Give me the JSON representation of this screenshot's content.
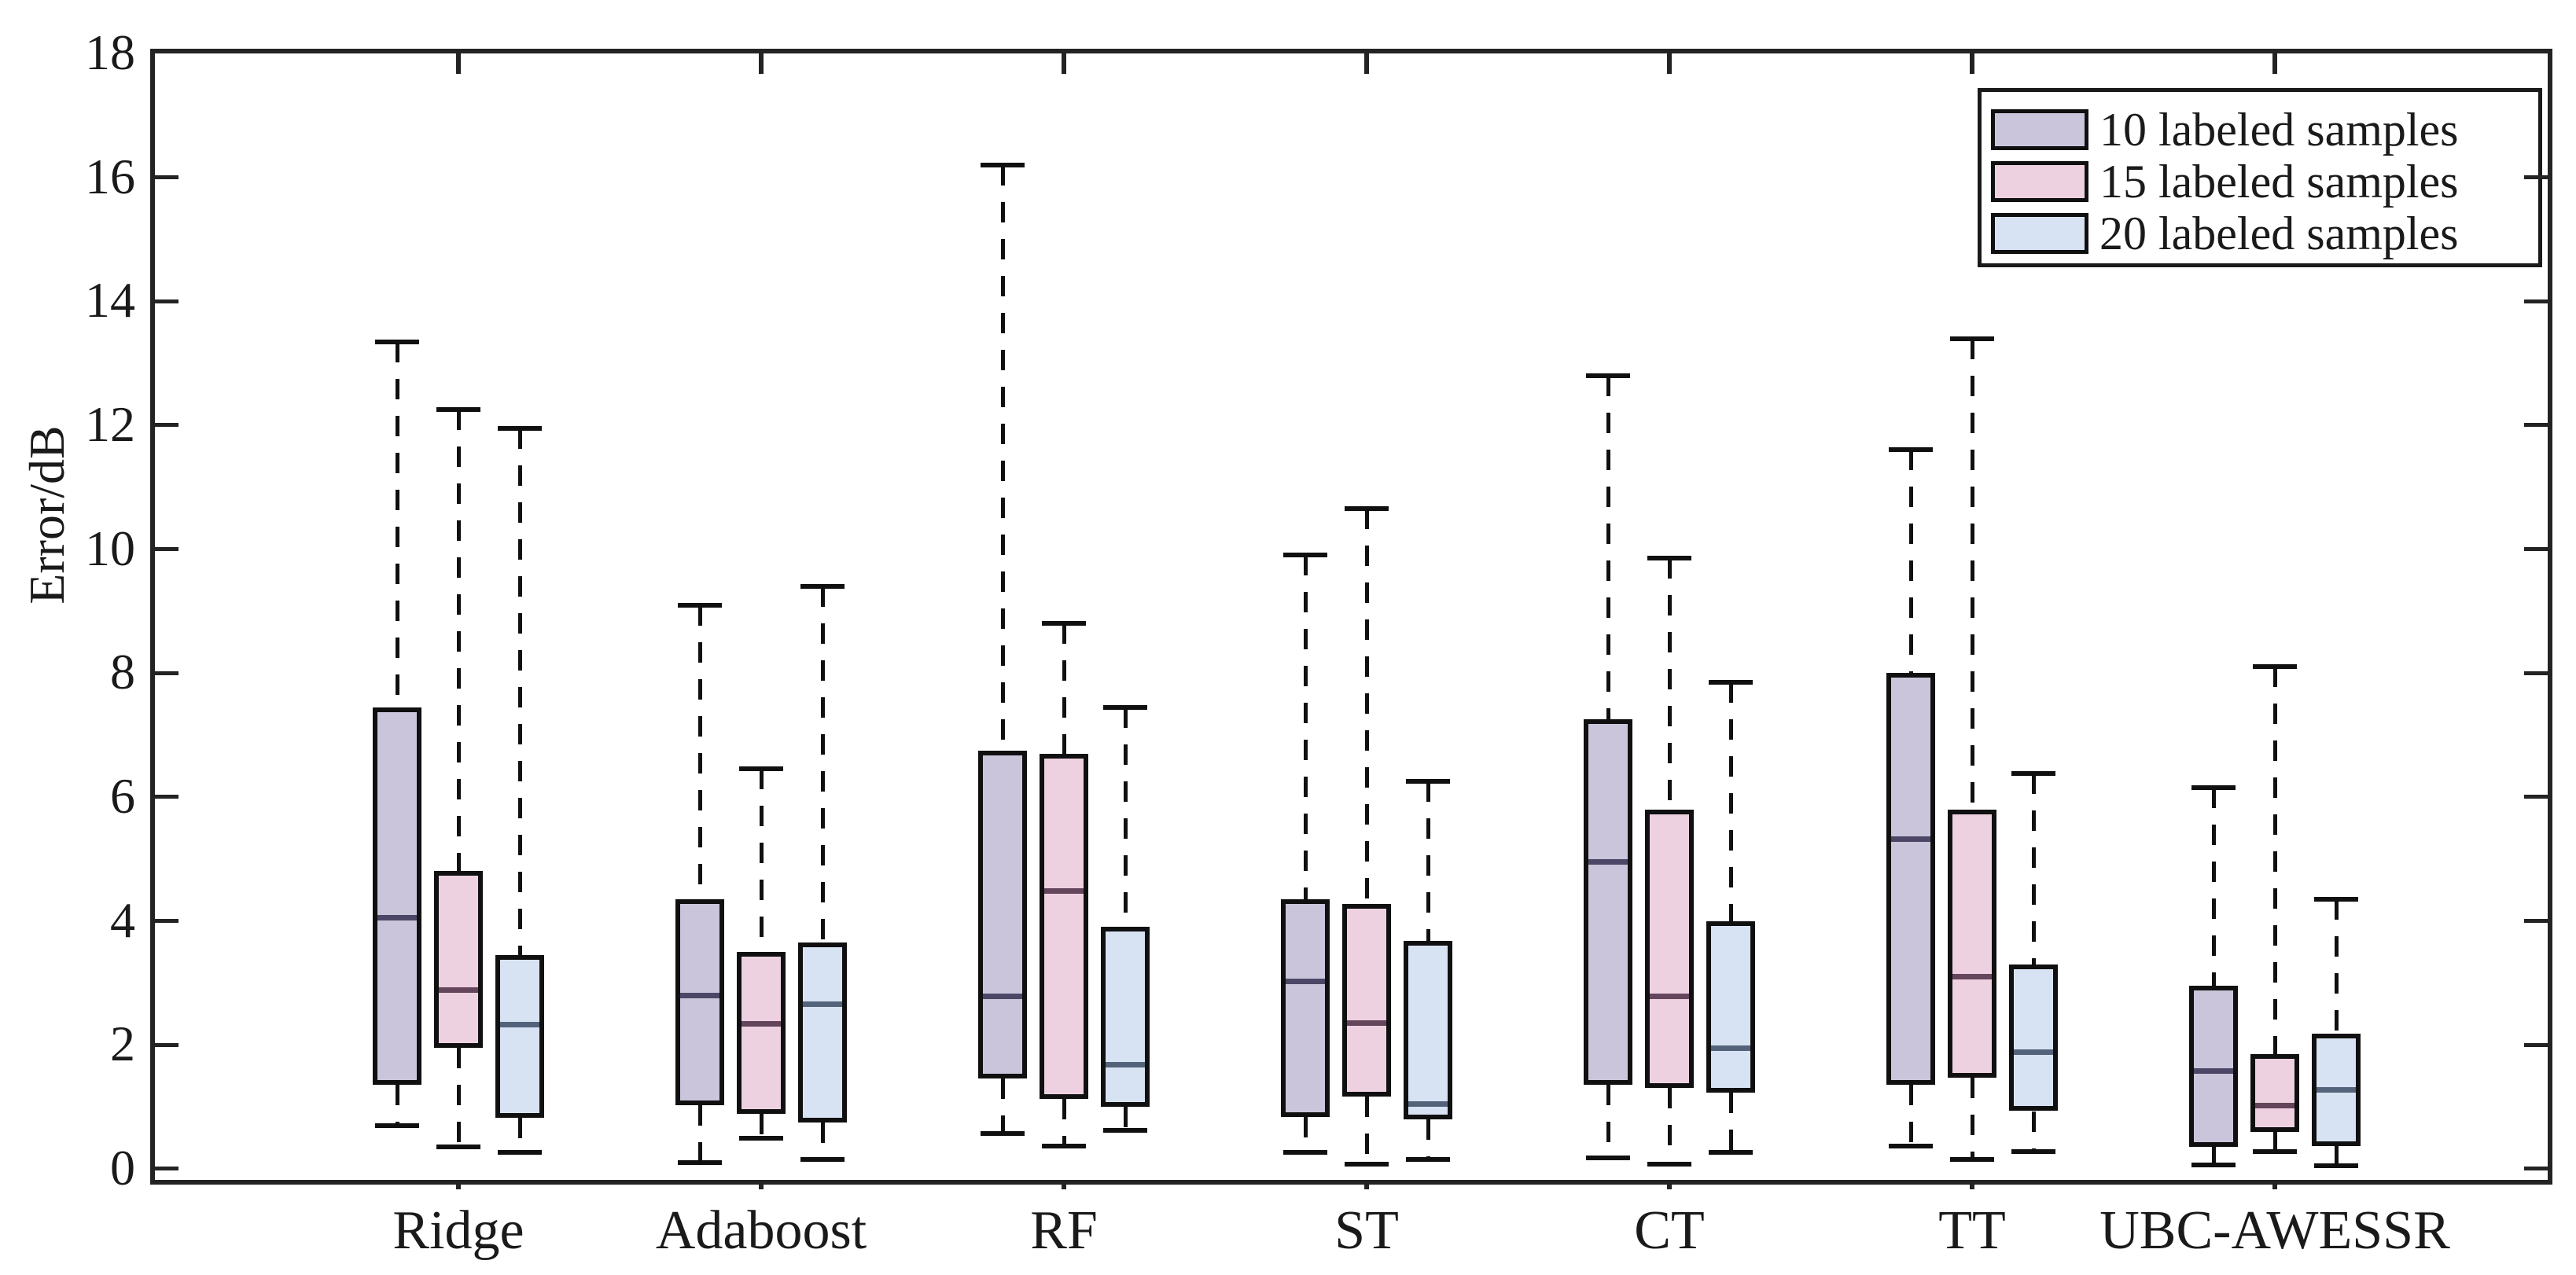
{
  "figure": {
    "background": "#ffffff",
    "axis_color": "#232323"
  },
  "y_axis": {
    "title": "Error/dB",
    "tick_labels": [
      "0",
      "2",
      "4",
      "6",
      "8",
      "10",
      "12",
      "14",
      "16",
      "18"
    ]
  },
  "chart_data": {
    "type": "boxplot",
    "title": "",
    "xlabel": "",
    "ylabel": "Error/dB",
    "categories": [
      "Ridge",
      "Adaboost",
      "RF",
      "ST",
      "CT",
      "TT",
      "UBC-AWESSR"
    ],
    "ylim": [
      -0.18,
      18
    ],
    "yticks": [
      0,
      2,
      4,
      6,
      8,
      10,
      12,
      14,
      16,
      18
    ],
    "grid": false,
    "legend_position": "top-right",
    "box_border_color": "#101010",
    "whisker_style": "dashed",
    "series": [
      {
        "name": "10 labeled samples",
        "fill": "#CBC5DC",
        "median_color": "#4C4766",
        "boxes": [
          {
            "low": 0.7,
            "q1": 1.35,
            "median": 4.05,
            "q3": 7.45,
            "high": 13.35
          },
          {
            "low": 0.1,
            "q1": 1.03,
            "median": 2.8,
            "q3": 4.35,
            "high": 9.1
          },
          {
            "low": 0.57,
            "q1": 1.46,
            "median": 2.78,
            "q3": 6.75,
            "high": 16.2
          },
          {
            "low": 0.26,
            "q1": 0.84,
            "median": 3.02,
            "q3": 4.35,
            "high": 9.9
          },
          {
            "low": 0.17,
            "q1": 1.35,
            "median": 4.95,
            "q3": 7.25,
            "high": 12.8
          },
          {
            "low": 0.37,
            "q1": 1.36,
            "median": 5.32,
            "q3": 8.0,
            "high": 11.6
          },
          {
            "low": 0.06,
            "q1": 0.35,
            "median": 1.58,
            "q3": 2.95,
            "high": 6.15
          }
        ]
      },
      {
        "name": "15 labeled samples",
        "fill": "#EDD1E1",
        "median_color": "#64455C",
        "boxes": [
          {
            "low": 0.35,
            "q1": 1.95,
            "median": 2.88,
            "q3": 4.8,
            "high": 12.25
          },
          {
            "low": 0.49,
            "q1": 0.88,
            "median": 2.34,
            "q3": 3.5,
            "high": 6.45
          },
          {
            "low": 0.37,
            "q1": 1.13,
            "median": 4.48,
            "q3": 6.7,
            "high": 8.8
          },
          {
            "low": 0.08,
            "q1": 1.17,
            "median": 2.35,
            "q3": 4.27,
            "high": 10.65
          },
          {
            "low": 0.08,
            "q1": 1.3,
            "median": 2.78,
            "q3": 5.8,
            "high": 9.85
          },
          {
            "low": 0.15,
            "q1": 1.47,
            "median": 3.1,
            "q3": 5.8,
            "high": 13.4
          },
          {
            "low": 0.28,
            "q1": 0.6,
            "median": 1.02,
            "q3": 1.85,
            "high": 8.1
          }
        ]
      },
      {
        "name": "20 labeled samples",
        "fill": "#D7E3F3",
        "median_color": "#53637A",
        "boxes": [
          {
            "low": 0.26,
            "q1": 0.82,
            "median": 2.33,
            "q3": 3.45,
            "high": 11.95
          },
          {
            "low": 0.15,
            "q1": 0.75,
            "median": 2.65,
            "q3": 3.65,
            "high": 9.4
          },
          {
            "low": 0.62,
            "q1": 1.0,
            "median": 1.68,
            "q3": 3.9,
            "high": 7.45
          },
          {
            "low": 0.15,
            "q1": 0.8,
            "median": 1.05,
            "q3": 3.68,
            "high": 6.25
          },
          {
            "low": 0.27,
            "q1": 1.23,
            "median": 1.95,
            "q3": 4.0,
            "high": 7.85
          },
          {
            "low": 0.28,
            "q1": 0.93,
            "median": 1.88,
            "q3": 3.3,
            "high": 6.38
          },
          {
            "low": 0.05,
            "q1": 0.36,
            "median": 1.27,
            "q3": 2.18,
            "high": 4.35
          }
        ]
      }
    ]
  },
  "legend": {
    "entries": [
      "10 labeled samples",
      "15 labeled samples",
      "20 labeled samples"
    ]
  }
}
